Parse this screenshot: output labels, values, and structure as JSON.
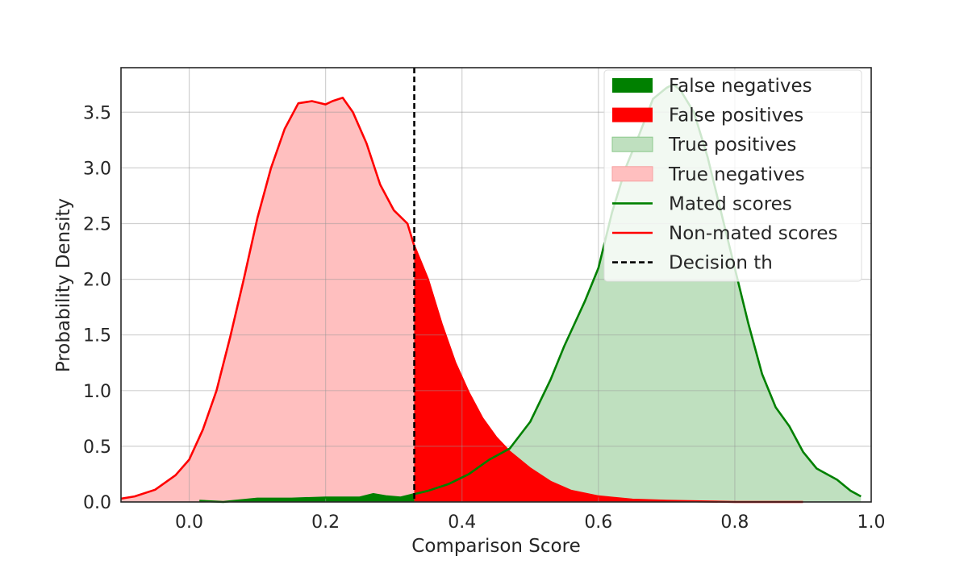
{
  "chart_data": {
    "type": "area",
    "xlabel": "Comparison Score",
    "ylabel": "Probability Density",
    "xlim": [
      -0.1,
      1.0
    ],
    "ylim": [
      0,
      3.9
    ],
    "xticks": [
      "0.0",
      "0.2",
      "0.4",
      "0.6",
      "0.8",
      "1.0"
    ],
    "yticks": [
      "0.0",
      "0.5",
      "1.0",
      "1.5",
      "2.0",
      "2.5",
      "3.0",
      "3.5"
    ],
    "grid": true,
    "legend_position": "top-right",
    "threshold": 0.33,
    "colors": {
      "mated": "#008000",
      "non_mated": "#ff0000",
      "true_positive_fill": "#bfe0bf",
      "true_negative_fill": "#ffbfbf",
      "threshold": "#000000"
    },
    "legend": [
      {
        "label": "False negatives",
        "kind": "patch",
        "color": "#008000"
      },
      {
        "label": "False positives",
        "kind": "patch",
        "color": "#ff0000"
      },
      {
        "label": "True positives",
        "kind": "patch-light",
        "color": "#bfe0bf",
        "edge": "#8cc98c"
      },
      {
        "label": "True negatives",
        "kind": "patch-light",
        "color": "#ffbfbf",
        "edge": "#f5a0a0"
      },
      {
        "label": "Mated scores",
        "kind": "line",
        "color": "#008000"
      },
      {
        "label": "Non-mated scores",
        "kind": "line",
        "color": "#ff0000"
      },
      {
        "label": "Decision th",
        "kind": "dash",
        "color": "#000000"
      }
    ],
    "series": [
      {
        "name": "Non-mated scores",
        "x": [
          -0.1,
          -0.08,
          -0.05,
          -0.02,
          0.0,
          0.02,
          0.04,
          0.06,
          0.08,
          0.1,
          0.12,
          0.14,
          0.16,
          0.18,
          0.2,
          0.21,
          0.225,
          0.24,
          0.26,
          0.28,
          0.3,
          0.32,
          0.33,
          0.35,
          0.37,
          0.39,
          0.41,
          0.43,
          0.45,
          0.47,
          0.5,
          0.53,
          0.56,
          0.6,
          0.65,
          0.7,
          0.8,
          0.9
        ],
        "y": [
          0.03,
          0.05,
          0.11,
          0.24,
          0.38,
          0.65,
          1.0,
          1.48,
          2.0,
          2.55,
          3.0,
          3.35,
          3.58,
          3.6,
          3.57,
          3.6,
          3.63,
          3.5,
          3.22,
          2.85,
          2.62,
          2.5,
          2.3,
          2.0,
          1.6,
          1.25,
          0.98,
          0.75,
          0.58,
          0.45,
          0.3,
          0.18,
          0.1,
          0.05,
          0.02,
          0.01,
          0.0,
          0.0
        ]
      },
      {
        "name": "Mated scores",
        "x": [
          0.015,
          0.05,
          0.1,
          0.15,
          0.2,
          0.25,
          0.27,
          0.29,
          0.31,
          0.33,
          0.35,
          0.38,
          0.41,
          0.44,
          0.47,
          0.5,
          0.53,
          0.55,
          0.58,
          0.6,
          0.62,
          0.64,
          0.66,
          0.68,
          0.7,
          0.71,
          0.72,
          0.74,
          0.76,
          0.78,
          0.8,
          0.82,
          0.84,
          0.86,
          0.88,
          0.9,
          0.92,
          0.95,
          0.97,
          0.985
        ],
        "y": [
          0.01,
          0.0,
          0.03,
          0.03,
          0.04,
          0.04,
          0.07,
          0.05,
          0.04,
          0.07,
          0.1,
          0.16,
          0.25,
          0.38,
          0.48,
          0.72,
          1.1,
          1.4,
          1.8,
          2.1,
          2.6,
          3.0,
          3.3,
          3.62,
          3.72,
          3.75,
          3.7,
          3.5,
          3.1,
          2.6,
          2.1,
          1.6,
          1.15,
          0.85,
          0.68,
          0.45,
          0.3,
          0.2,
          0.1,
          0.05
        ]
      }
    ]
  }
}
